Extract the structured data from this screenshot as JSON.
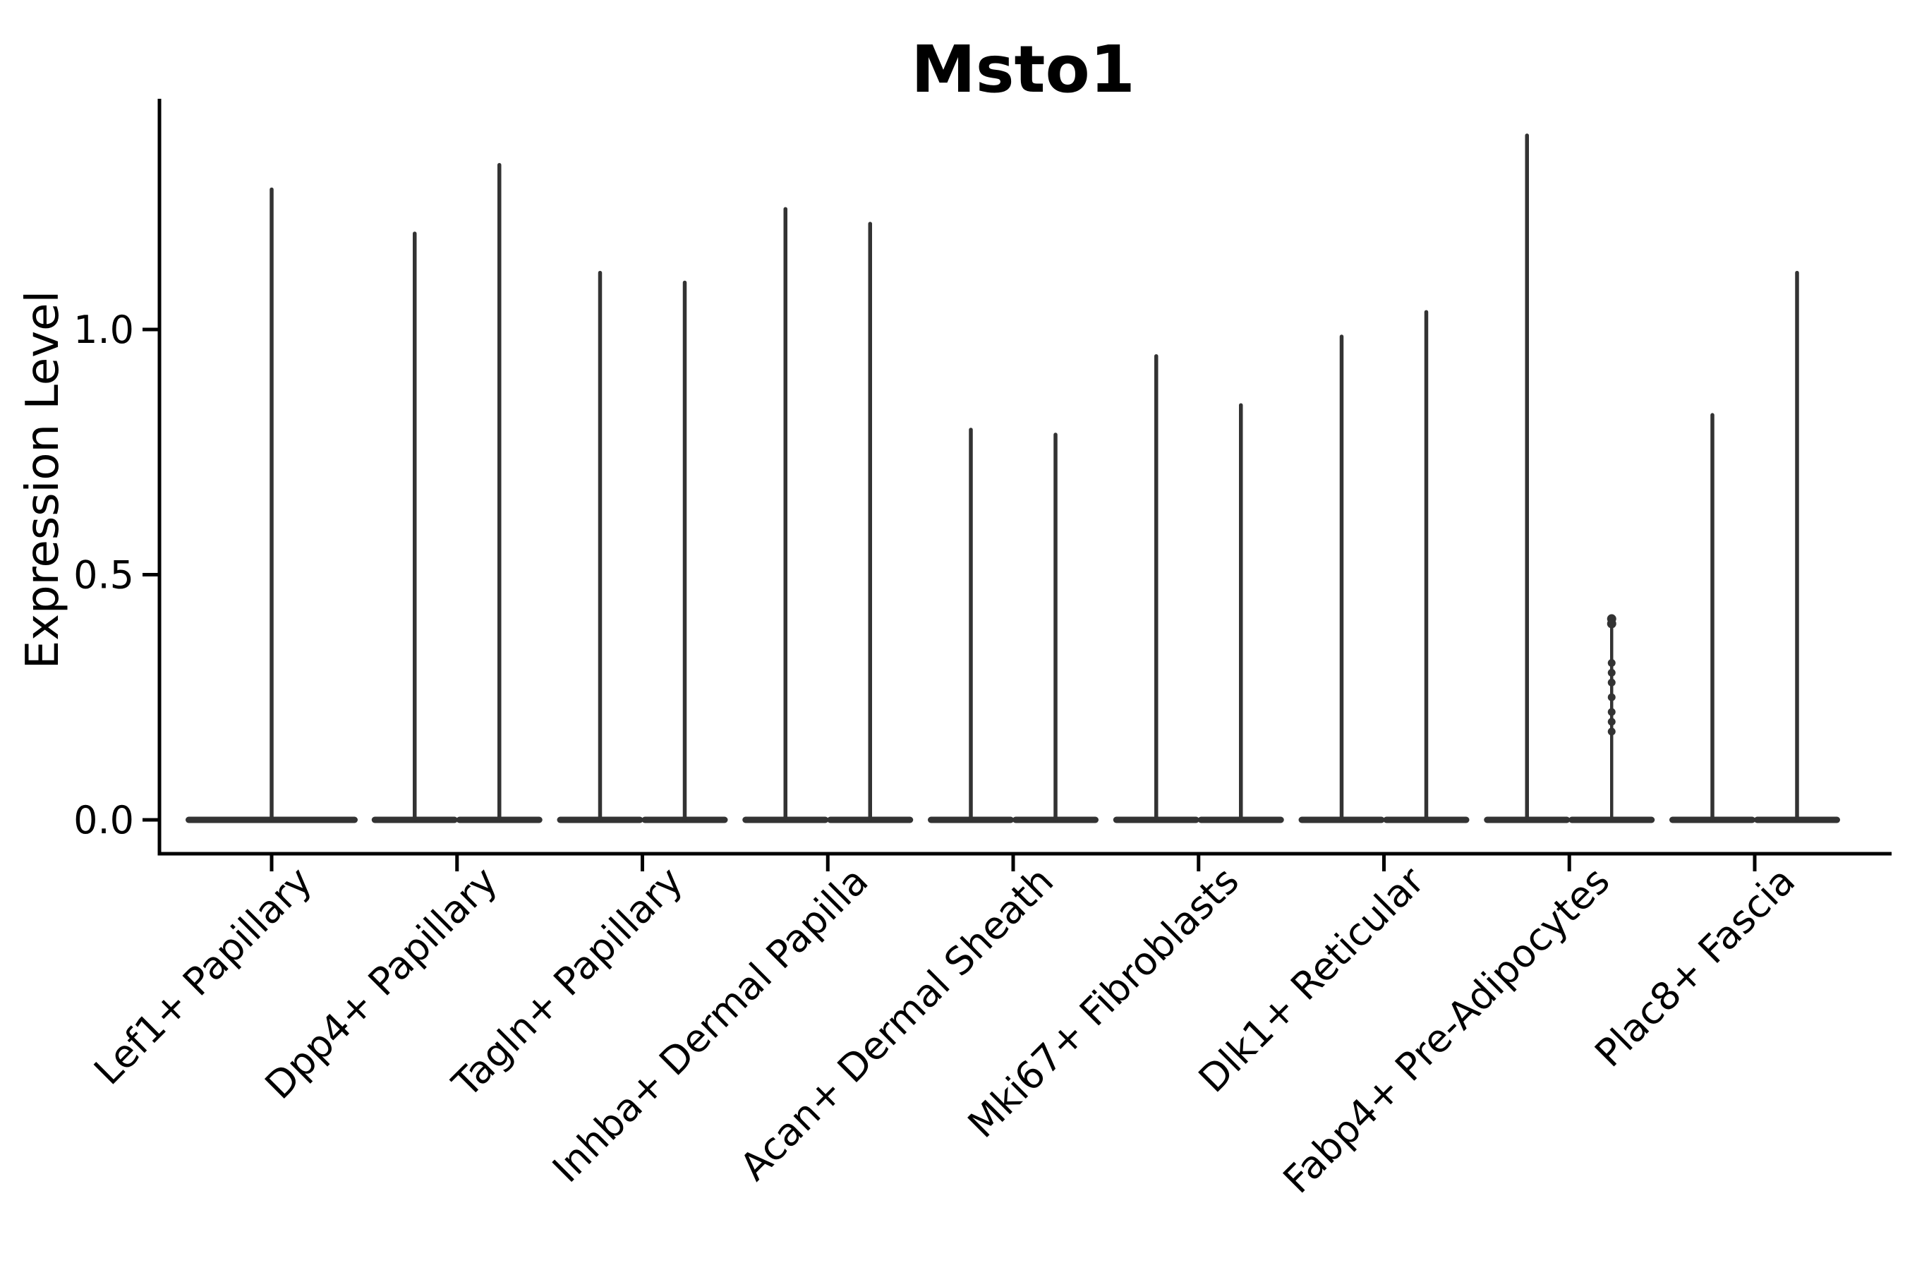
{
  "chart_data": {
    "type": "violin",
    "title": "Msto1",
    "ylabel": "Expression Level",
    "xlabel": "",
    "yticks": [
      "0.0",
      "0.5",
      "1.0"
    ],
    "ytick_values": [
      0.0,
      0.5,
      1.0
    ],
    "ylim": [
      -0.07,
      1.47
    ],
    "grid": false,
    "legend": "none",
    "categories": [
      "Lef1+ Papillary",
      "Dpp4+ Papillary",
      "Tagln+ Papillary",
      "Inhba+ Dermal Papilla",
      "Acan+ Dermal Sheath",
      "Mki67+ Fibroblasts",
      "Dlk1+ Reticular",
      "Fabp4+ Pre-Adipocytes",
      "Plac8+ Fascia"
    ],
    "groups": [
      {
        "category": "Lef1+ Papillary",
        "violins": [
          {
            "pos": "center",
            "max": 1.29,
            "style": "solid"
          }
        ]
      },
      {
        "category": "Dpp4+ Papillary",
        "violins": [
          {
            "pos": "left",
            "max": 1.2,
            "style": "solid"
          },
          {
            "pos": "right",
            "max": 1.34,
            "style": "solid"
          }
        ]
      },
      {
        "category": "Tagln+ Papillary",
        "violins": [
          {
            "pos": "left",
            "max": 1.12,
            "style": "solid"
          },
          {
            "pos": "right",
            "max": 1.1,
            "style": "solid"
          }
        ]
      },
      {
        "category": "Inhba+ Dermal Papilla",
        "violins": [
          {
            "pos": "left",
            "max": 1.25,
            "style": "solid"
          },
          {
            "pos": "right",
            "max": 1.22,
            "style": "solid"
          }
        ]
      },
      {
        "category": "Acan+ Dermal Sheath",
        "violins": [
          {
            "pos": "left",
            "max": 0.8,
            "style": "solid"
          },
          {
            "pos": "right",
            "max": 0.79,
            "style": "solid"
          }
        ]
      },
      {
        "category": "Mki67+ Fibroblasts",
        "violins": [
          {
            "pos": "left",
            "max": 0.95,
            "style": "solid"
          },
          {
            "pos": "right",
            "max": 0.85,
            "style": "solid"
          }
        ]
      },
      {
        "category": "Dlk1+ Reticular",
        "violins": [
          {
            "pos": "left",
            "max": 0.99,
            "style": "solid"
          },
          {
            "pos": "right",
            "max": 1.04,
            "style": "solid"
          }
        ]
      },
      {
        "category": "Fabp4+ Pre-Adipocytes",
        "violins": [
          {
            "pos": "left",
            "max": 1.4,
            "style": "solid"
          },
          {
            "pos": "right",
            "max": 0.42,
            "style": "dotted",
            "points": [
              0.41,
              0.4,
              0.32,
              0.3,
              0.28,
              0.25,
              0.22,
              0.2,
              0.18
            ]
          }
        ]
      },
      {
        "category": "Plac8+ Fascia",
        "violins": [
          {
            "pos": "left",
            "max": 0.83,
            "style": "solid"
          },
          {
            "pos": "right",
            "max": 1.12,
            "style": "solid"
          }
        ]
      }
    ],
    "colors": {
      "violin": "#333333",
      "axis": "#000000",
      "background": "#ffffff"
    }
  }
}
